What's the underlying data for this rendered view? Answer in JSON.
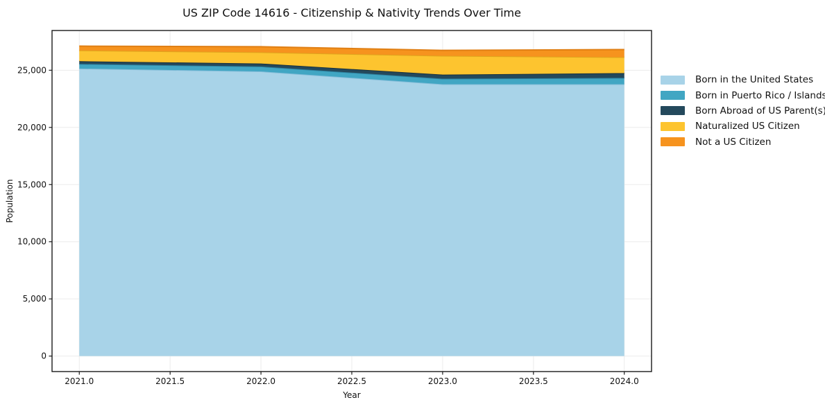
{
  "title": "US ZIP Code 14616 - Citizenship & Nativity Trends Over Time",
  "background_color": "#ffffff",
  "chart_data": {
    "type": "area",
    "stacked": true,
    "title": "US ZIP Code 14616 - Citizenship & Nativity Trends Over Time",
    "xlabel": "Year",
    "ylabel": "Population",
    "x": [
      2021,
      2022,
      2023,
      2024
    ],
    "series": [
      {
        "name": "Born in the United States",
        "color": "#a8d3e8",
        "edge_color": "#85bdd9",
        "values": [
          25150,
          24900,
          23780,
          23780
        ]
      },
      {
        "name": "Born in Puerto Rico / Islands",
        "color": "#41a6c3",
        "edge_color": "#2e82a0",
        "values": [
          400,
          430,
          480,
          550
        ]
      },
      {
        "name": "Born Abroad of US Parent(s)",
        "color": "#24495c",
        "edge_color": "#16303f",
        "values": [
          240,
          260,
          360,
          420
        ]
      },
      {
        "name": "Naturalized US Citizen",
        "color": "#fdc42f",
        "edge_color": "#dfa51d",
        "values": [
          940,
          980,
          1640,
          1390
        ]
      },
      {
        "name": "Not a US Citizen",
        "color": "#f6931e",
        "edge_color": "#e07f14",
        "values": [
          380,
          490,
          480,
          670
        ]
      }
    ],
    "xticks": [
      2021.0,
      2021.5,
      2022.0,
      2022.5,
      2023.0,
      2023.5,
      2024.0
    ],
    "xtick_labels": [
      "2021.0",
      "2021.5",
      "2022.0",
      "2022.5",
      "2023.0",
      "2023.5",
      "2024.0"
    ],
    "yticks": [
      0,
      5000,
      10000,
      15000,
      20000,
      25000
    ],
    "ytick_labels": [
      "0",
      "5,000",
      "10,000",
      "15,000",
      "20,000",
      "25,000"
    ],
    "xlim": [
      2020.85,
      2024.15
    ],
    "ylim": [
      -1356,
      28476
    ],
    "grid": true,
    "grid_color": "#ebebeb",
    "spine_color": "#1a1a1a",
    "legend": {
      "position": "right-outside",
      "frame": false
    }
  }
}
